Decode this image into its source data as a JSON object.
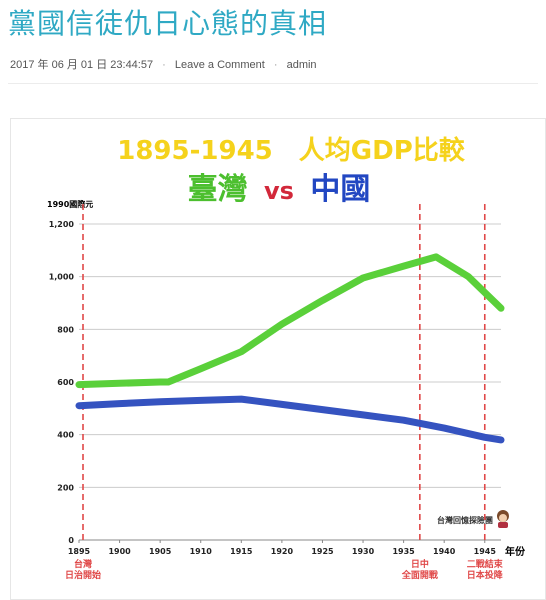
{
  "post": {
    "title": "黨國信徒仇日心態的真相",
    "meta": {
      "date": "2017 年 06 月 01 日 23:44:57",
      "comment_link": "Leave a Comment",
      "author": "admin"
    }
  },
  "chart_data": {
    "type": "line",
    "title": "1895-1945　人均GDP比較",
    "subtitle_parts": [
      "臺灣",
      "vs",
      "中國"
    ],
    "ylabel": "1990國際元",
    "xlabel": "年份",
    "ylim": [
      0,
      1200
    ],
    "xlim": [
      1895,
      1947
    ],
    "yticks": [
      "0",
      "200",
      "400",
      "600",
      "800",
      "1,000",
      "1,200"
    ],
    "ytick_values": [
      0,
      200,
      400,
      600,
      800,
      1000,
      1200
    ],
    "xticks": [
      "1895",
      "1900",
      "1905",
      "1910",
      "1915",
      "1920",
      "1925",
      "1930",
      "1935",
      "1940",
      "1945"
    ],
    "xtick_values": [
      1895,
      1900,
      1905,
      1910,
      1915,
      1920,
      1925,
      1930,
      1935,
      1940,
      1945
    ],
    "grid": true,
    "series": [
      {
        "name": "臺灣",
        "color": "#5ad03a",
        "x": [
          1895,
          1900,
          1905,
          1906,
          1910,
          1915,
          1920,
          1925,
          1930,
          1935,
          1939,
          1943,
          1947
        ],
        "values": [
          590,
          595,
          600,
          600,
          650,
          715,
          820,
          910,
          995,
          1040,
          1075,
          1000,
          880
        ]
      },
      {
        "name": "中國",
        "color": "#3553c0",
        "x": [
          1895,
          1900,
          1905,
          1910,
          1915,
          1920,
          1925,
          1930,
          1935,
          1940,
          1945,
          1947
        ],
        "values": [
          510,
          518,
          525,
          530,
          535,
          515,
          495,
          475,
          455,
          425,
          390,
          380
        ]
      }
    ],
    "markers": [
      {
        "x": 1895,
        "label": [
          "台灣",
          "日治開始"
        ]
      },
      {
        "x": 1937,
        "label": [
          "日中",
          "全面開戰"
        ]
      },
      {
        "x": 1945,
        "label": [
          "二戰結束",
          "日本投降"
        ]
      }
    ],
    "watermark": "台灣回憶探險團",
    "colors": {
      "title": "#f5d21c",
      "taiwan": "#4cbf2e",
      "vs": "#d2283a",
      "china": "#2247c2",
      "marker": "#e04848",
      "axis_text": "#222222",
      "grid": "#cccccc"
    }
  }
}
